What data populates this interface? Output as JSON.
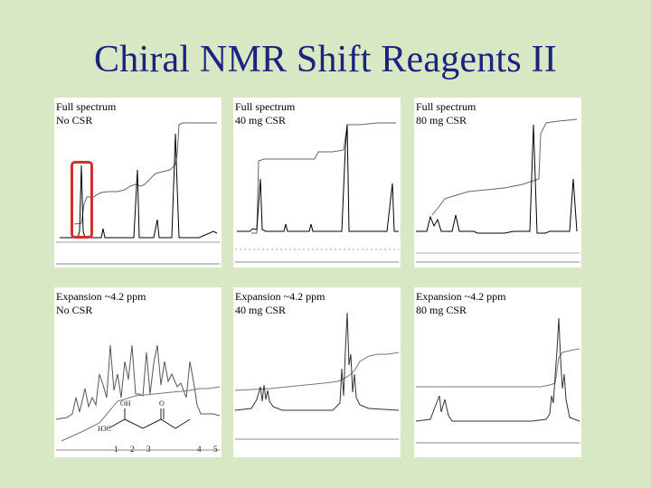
{
  "slide": {
    "title": "Chiral NMR Shift Reagents II"
  },
  "panels": [
    {
      "id": "p1",
      "line1": "Full spectrum",
      "line2": "No CSR"
    },
    {
      "id": "p2",
      "line1": "Full spectrum",
      "line2": "40 mg CSR"
    },
    {
      "id": "p3",
      "line1": "Full spectrum",
      "line2": "80 mg CSR"
    },
    {
      "id": "p4",
      "line1": "Expansion ~4.2 ppm",
      "line2": "No CSR"
    },
    {
      "id": "p5",
      "line1": "Expansion ~4.2 ppm",
      "line2": "40 mg CSR"
    },
    {
      "id": "p6",
      "line1": "Expansion ~4.2 ppm",
      "line2": "80 mg CSR"
    }
  ],
  "molecule": {
    "oh_label": "OH",
    "o_label": "O",
    "h3c_label": "H3C",
    "numbers": [
      "1",
      "2",
      "3",
      "4",
      "5"
    ]
  },
  "colors": {
    "background": "#d9e8c4",
    "title": "#1a237e",
    "highlight": "#d32f2f"
  }
}
